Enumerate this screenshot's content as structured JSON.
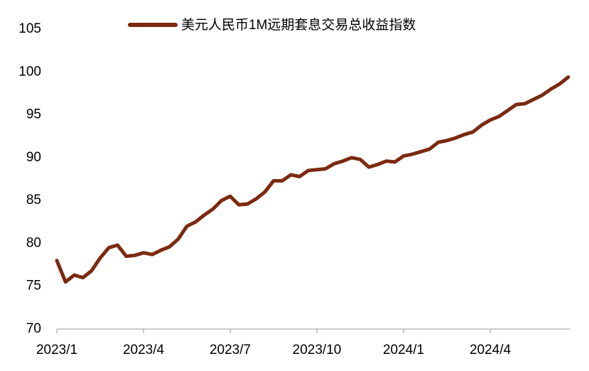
{
  "chart_data": {
    "type": "line",
    "categories": [
      "2023/1",
      null,
      null,
      null,
      null,
      null,
      null,
      null,
      null,
      null,
      "2023/4",
      null,
      null,
      null,
      null,
      null,
      null,
      null,
      null,
      null,
      "2023/7",
      null,
      null,
      null,
      null,
      null,
      null,
      null,
      null,
      null,
      "2023/10",
      null,
      null,
      null,
      null,
      null,
      null,
      null,
      null,
      null,
      "2024/1",
      null,
      null,
      null,
      null,
      null,
      null,
      null,
      null,
      null,
      "2024/4",
      null,
      null,
      null,
      null,
      null,
      null,
      null,
      null,
      null
    ],
    "series": [
      {
        "name": "美元人民币1M远期套息交易总收益指数",
        "color": "#7b2a10",
        "values": [
          78,
          75.5,
          76.3,
          76,
          76.8,
          78.3,
          79.5,
          79.8,
          78.5,
          78.6,
          78.9,
          78.7,
          79.2,
          79.6,
          80.5,
          82,
          82.5,
          83.3,
          84,
          85,
          85.5,
          84.5,
          84.6,
          85.2,
          86,
          87.3,
          87.3,
          88,
          87.8,
          88.5,
          88.6,
          88.7,
          89.3,
          89.6,
          90,
          89.8,
          88.9,
          89.2,
          89.6,
          89.5,
          90.2,
          90.4,
          90.7,
          91,
          91.8,
          92,
          92.3,
          92.7,
          93,
          93.8,
          94.4,
          94.8,
          95.5,
          96.2,
          96.3,
          96.8,
          97.3,
          98,
          98.6,
          99.4
        ]
      }
    ],
    "ylim": [
      70,
      105
    ],
    "yticks": [
      70,
      75,
      80,
      85,
      90,
      95,
      100,
      105
    ],
    "grid": false,
    "legend": "top"
  }
}
